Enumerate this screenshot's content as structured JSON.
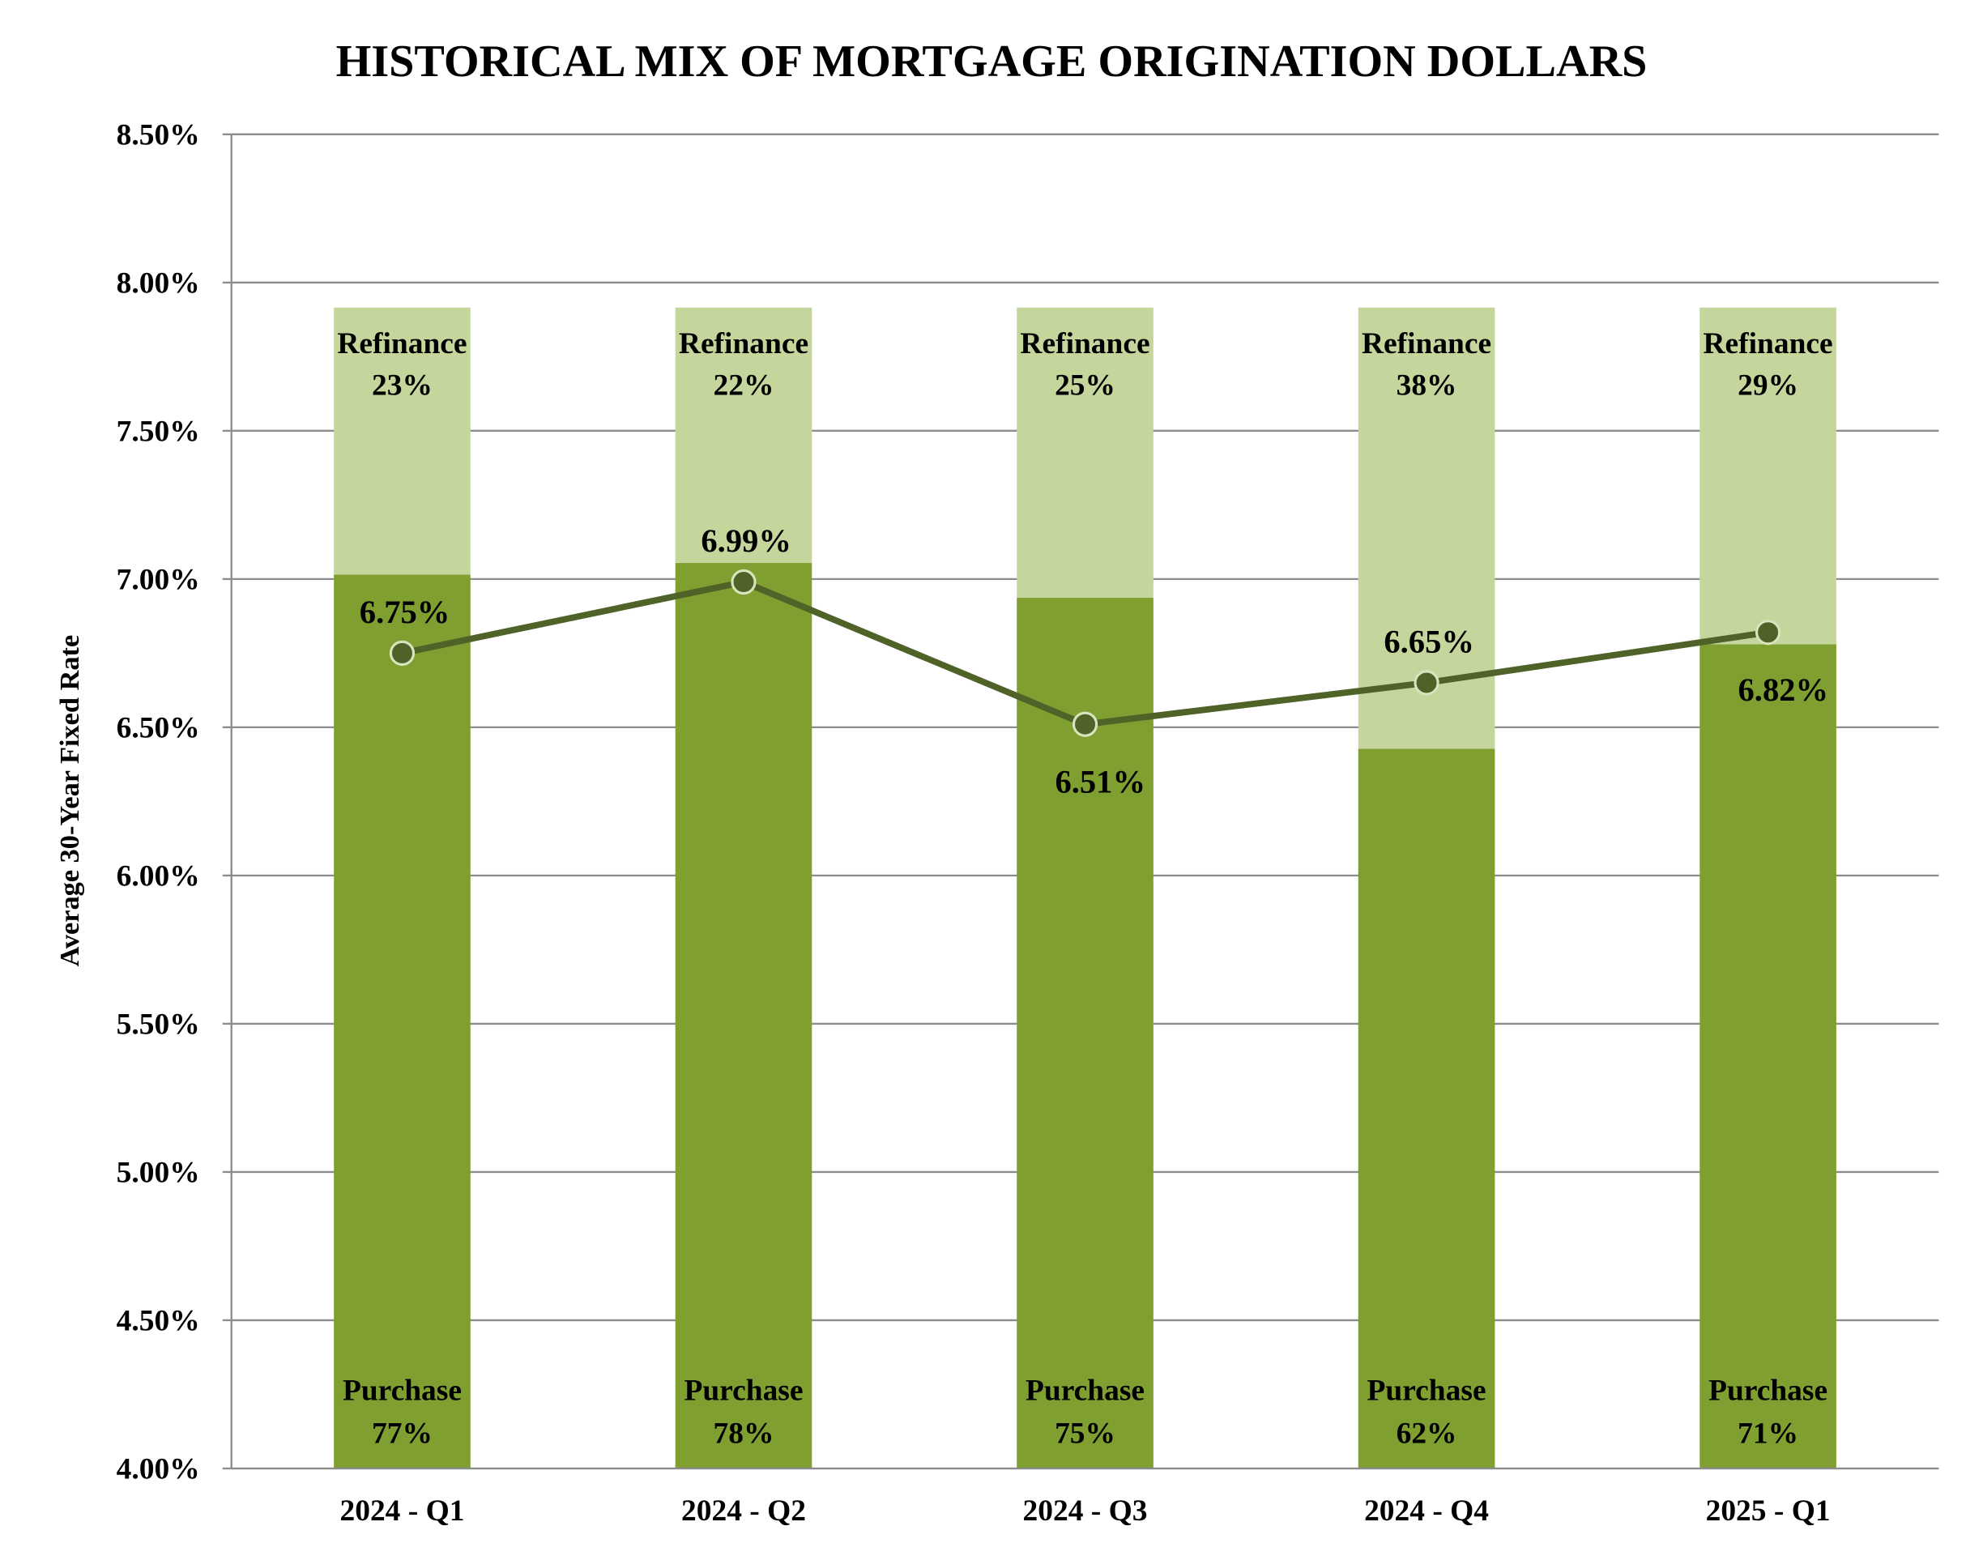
{
  "chart_data": {
    "type": "bar+line",
    "title": "HISTORICAL MIX OF MORTGAGE ORIGINATION DOLLARS",
    "ylabel": "Average 30-Year Fixed Rate",
    "ylim": [
      4.0,
      8.5
    ],
    "yticks": [
      "4.00%",
      "4.50%",
      "5.00%",
      "5.50%",
      "6.00%",
      "6.50%",
      "7.00%",
      "7.50%",
      "8.00%",
      "8.50%"
    ],
    "ytick_values": [
      4.0,
      4.5,
      5.0,
      5.5,
      6.0,
      6.5,
      7.0,
      7.5,
      8.0,
      8.5
    ],
    "grid": true,
    "categories": [
      "2024 - Q1",
      "2024 - Q2",
      "2024 - Q3",
      "2024 - Q4",
      "2025 - Q1"
    ],
    "stacked_bars": [
      {
        "name": "Purchase",
        "values": [
          77,
          78,
          75,
          62,
          71
        ],
        "labels": [
          "77%",
          "78%",
          "75%",
          "62%",
          "71%"
        ],
        "color": "#7f9f31"
      },
      {
        "name": "Refinance",
        "values": [
          23,
          22,
          25,
          38,
          29
        ],
        "labels": [
          "23%",
          "22%",
          "25%",
          "38%",
          "29%"
        ],
        "color": "#c4d69b"
      }
    ],
    "line": {
      "values": [
        6.75,
        6.99,
        6.51,
        6.65,
        6.82
      ],
      "labels": [
        "6.75%",
        "6.99%",
        "6.51%",
        "6.65%",
        "6.82%"
      ],
      "label_positions": [
        "above",
        "above",
        "below",
        "above",
        "below"
      ],
      "color": "#4f6228"
    }
  }
}
